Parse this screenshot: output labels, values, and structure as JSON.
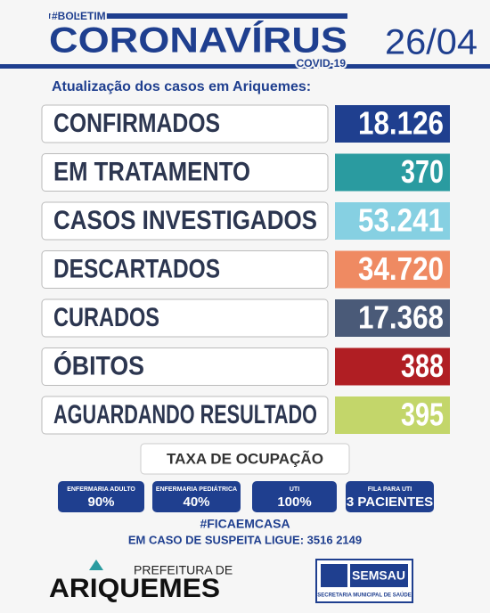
{
  "header": {
    "tag": "#BOLETIM",
    "title": "CORONAVÍRUS",
    "subtitle": "COVID-19",
    "date": "26/04",
    "intro": "Atualização dos casos em Ariquemes:"
  },
  "cases": [
    {
      "label": "CONFIRMADOS",
      "value": "18.126"
    },
    {
      "label": "EM TRATAMENTO",
      "value": "370"
    },
    {
      "label": "CASOS INVESTIGADOS",
      "value": "53.241"
    },
    {
      "label": "DESCARTADOS",
      "value": "34.720"
    },
    {
      "label": "CURADOS",
      "value": "17.368"
    },
    {
      "label": "ÓBITOS",
      "value": "388"
    },
    {
      "label": "AGUARDANDO RESULTADO",
      "value": "395"
    }
  ],
  "occupancy": {
    "title": "TAXA DE OCUPAÇÃO",
    "items": [
      {
        "label": "ENFERMARIA ADULTO",
        "value": "90%"
      },
      {
        "label": "ENFERMARIA PEDIÁTRICA",
        "value": "40%"
      },
      {
        "label": "UTI",
        "value": "100%"
      },
      {
        "label": "FILA PARA UTI",
        "value": "3 PACIENTES"
      }
    ]
  },
  "footer": {
    "hashtag": "#FICAEMCASA",
    "phone": "EM CASO DE SUSPEITA LIGUE: 3516 2149"
  },
  "logos": {
    "city_top": "PREFEITURA DE",
    "city": "ARIQUEMES",
    "agency": "SEMSAU",
    "agency_sub": "SECRETARIA MUNICIPAL DE SAÚDE"
  }
}
